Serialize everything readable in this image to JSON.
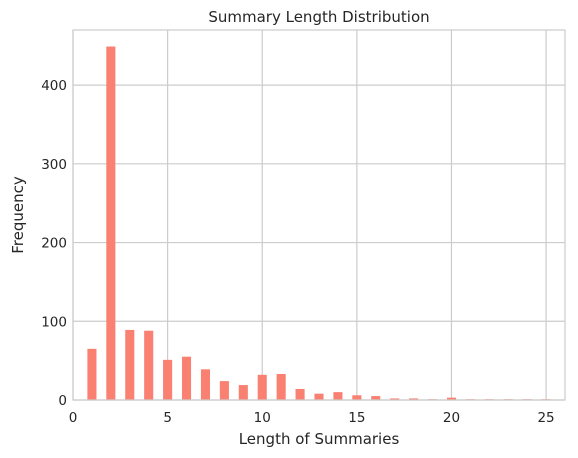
{
  "chart_data": {
    "type": "bar",
    "title": "Summary Length Distribution",
    "xlabel": "Length of Summaries",
    "ylabel": "Frequency",
    "xlim": [
      0,
      26
    ],
    "ylim": [
      0,
      470
    ],
    "x_ticks": [
      0,
      5,
      10,
      15,
      20,
      25
    ],
    "y_ticks": [
      0,
      100,
      200,
      300,
      400
    ],
    "grid": true,
    "bar_color": "#fa8072",
    "bar_width": 0.48,
    "bars": [
      {
        "x": 1,
        "y": 65
      },
      {
        "x": 2,
        "y": 449
      },
      {
        "x": 3,
        "y": 89
      },
      {
        "x": 4,
        "y": 88
      },
      {
        "x": 5,
        "y": 51
      },
      {
        "x": 6,
        "y": 55
      },
      {
        "x": 7,
        "y": 39
      },
      {
        "x": 8,
        "y": 24
      },
      {
        "x": 9,
        "y": 19
      },
      {
        "x": 10,
        "y": 32
      },
      {
        "x": 11,
        "y": 33
      },
      {
        "x": 12,
        "y": 14
      },
      {
        "x": 13,
        "y": 8
      },
      {
        "x": 14,
        "y": 10
      },
      {
        "x": 15,
        "y": 6
      },
      {
        "x": 16,
        "y": 5
      },
      {
        "x": 17,
        "y": 2
      },
      {
        "x": 18,
        "y": 2
      },
      {
        "x": 19,
        "y": 1
      },
      {
        "x": 20,
        "y": 3
      },
      {
        "x": 21,
        "y": 1
      },
      {
        "x": 22,
        "y": 1
      },
      {
        "x": 23,
        "y": 1
      },
      {
        "x": 24,
        "y": 1
      },
      {
        "x": 25,
        "y": 1
      }
    ]
  }
}
